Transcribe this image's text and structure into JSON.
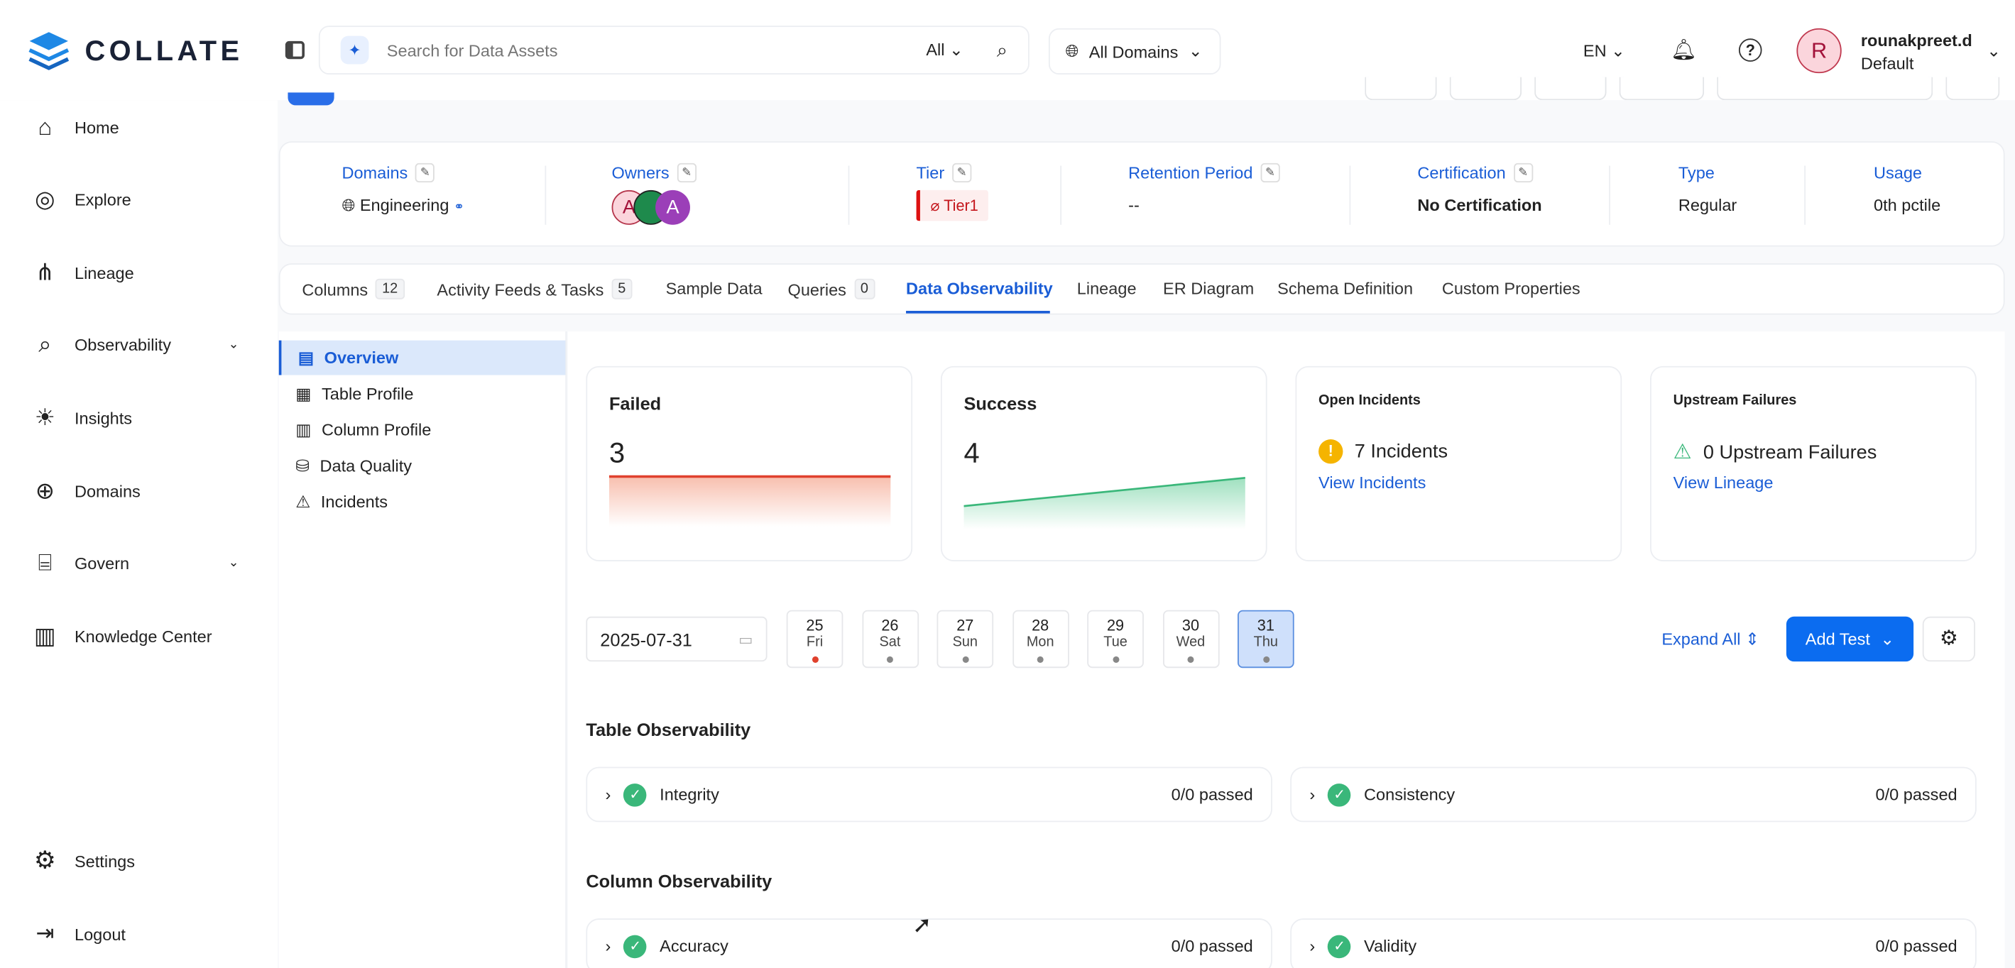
{
  "app": {
    "brand": "COLLATE"
  },
  "topbar": {
    "search_placeholder": "Search for Data Assets",
    "search_scope": "All",
    "domains": "All Domains",
    "language": "EN",
    "user_initial": "R",
    "user_name": "rounakpreet.d",
    "user_role": "Default"
  },
  "sidebar": {
    "items": [
      {
        "label": "Home",
        "icon": "home-icon"
      },
      {
        "label": "Explore",
        "icon": "compass-icon"
      },
      {
        "label": "Lineage",
        "icon": "lineage-icon"
      },
      {
        "label": "Observability",
        "icon": "observability-icon"
      },
      {
        "label": "Insights",
        "icon": "bulb-icon"
      },
      {
        "label": "Domains",
        "icon": "globe-icon"
      },
      {
        "label": "Govern",
        "icon": "bank-icon"
      },
      {
        "label": "Knowledge Center",
        "icon": "book-icon"
      }
    ],
    "settings": "Settings",
    "logout": "Logout"
  },
  "info": {
    "domains_label": "Domains",
    "domain_value": "Engineering",
    "owners_label": "Owners",
    "owner_initials": [
      "A",
      "A"
    ],
    "tier_label": "Tier",
    "tier_value": "Tier1",
    "retention_label": "Retention Period",
    "retention_value": "--",
    "certification_label": "Certification",
    "certification_value": "No Certification",
    "type_label": "Type",
    "type_value": "Regular",
    "usage_label": "Usage",
    "usage_value": "0th pctile"
  },
  "tabs": [
    {
      "label": "Columns",
      "count": "12"
    },
    {
      "label": "Activity Feeds & Tasks",
      "count": "5"
    },
    {
      "label": "Sample Data"
    },
    {
      "label": "Queries",
      "count": "0"
    },
    {
      "label": "Data Observability",
      "active": true
    },
    {
      "label": "Lineage"
    },
    {
      "label": "ER Diagram"
    },
    {
      "label": "Schema Definition"
    },
    {
      "label": "Custom Properties"
    }
  ],
  "subnav": [
    {
      "label": "Overview",
      "active": true
    },
    {
      "label": "Table Profile"
    },
    {
      "label": "Column Profile"
    },
    {
      "label": "Data Quality"
    },
    {
      "label": "Incidents"
    }
  ],
  "summary": {
    "failed_label": "Failed",
    "failed_value": "3",
    "success_label": "Success",
    "success_value": "4",
    "incidents_label": "Open Incidents",
    "incidents_value": "7 Incidents",
    "incidents_link": "View Incidents",
    "upstream_label": "Upstream Failures",
    "upstream_value": "0 Upstream Failures",
    "upstream_link": "View Lineage"
  },
  "dates": {
    "selected": "2025-07-31",
    "days": [
      {
        "n": "25",
        "w": "Fri",
        "status": "failed"
      },
      {
        "n": "26",
        "w": "Sat"
      },
      {
        "n": "27",
        "w": "Sun"
      },
      {
        "n": "28",
        "w": "Mon"
      },
      {
        "n": "29",
        "w": "Tue"
      },
      {
        "n": "30",
        "w": "Wed"
      },
      {
        "n": "31",
        "w": "Thu",
        "selected": true
      }
    ],
    "expand_all": "Expand All",
    "add_test": "Add Test"
  },
  "table_obs": {
    "title": "Table Observability",
    "rows": [
      {
        "label": "Integrity",
        "result": "0/0 passed"
      },
      {
        "label": "Consistency",
        "result": "0/0 passed"
      }
    ]
  },
  "column_obs": {
    "title": "Column Observability",
    "rows": [
      {
        "label": "Accuracy",
        "result": "0/0 passed"
      },
      {
        "label": "Validity",
        "result": "0/0 passed"
      }
    ]
  },
  "colors": {
    "accent": "#1a5dd6",
    "primary_button": "#0b6cf0",
    "failed": "#e0412d",
    "success": "#3ab77a"
  }
}
